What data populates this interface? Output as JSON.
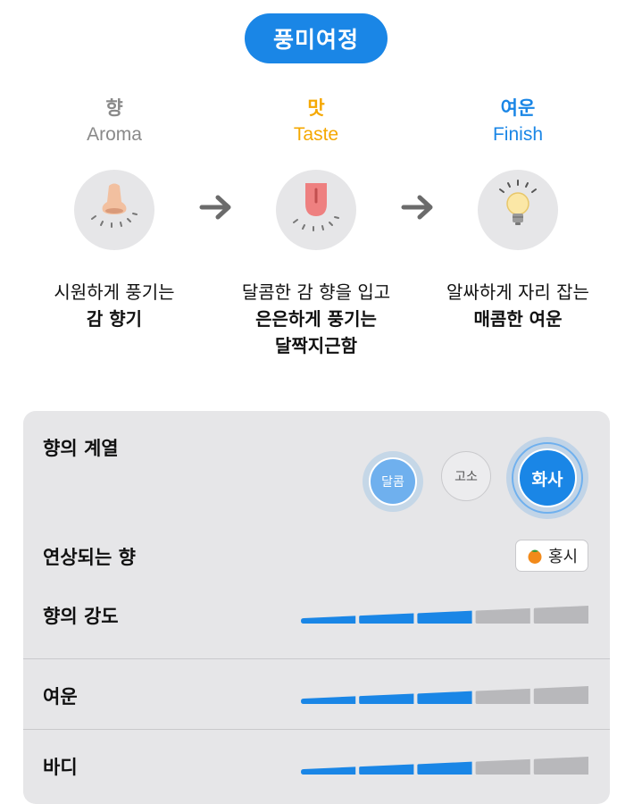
{
  "header": {
    "title": "풍미여정"
  },
  "stages": [
    {
      "ko": "향",
      "en": "Aroma",
      "icon": "nose-icon",
      "desc_line1": "시원하게 풍기는",
      "desc_bold": [
        "감 향기"
      ]
    },
    {
      "ko": "맛",
      "en": "Taste",
      "icon": "tongue-icon",
      "desc_line1": "달콤한 감 향을 입고",
      "desc_bold": [
        "은은하게 풍기는",
        "달짝지근함"
      ]
    },
    {
      "ko": "여운",
      "en": "Finish",
      "icon": "lightbulb-icon",
      "desc_line1": "알싸하게 자리 잡는",
      "desc_bold": [
        "매콤한 여운"
      ]
    }
  ],
  "colors": {
    "accent": "#1a86e6",
    "aroma": "#8a8a8a",
    "taste": "#f5a800",
    "finish": "#1a86e6",
    "bar_on": "#1a86e6",
    "bar_off": "#b8b8bb"
  },
  "profile": {
    "family": {
      "label": "향의 계열",
      "options": [
        "달콤",
        "고소",
        "화사"
      ],
      "selected": "화사",
      "secondary": "달콤"
    },
    "associated": {
      "label": "연상되는 향",
      "tag_icon": "persimmon-icon",
      "tag": "홍시"
    },
    "intensity": {
      "label": "향의 강도",
      "level": 3,
      "max": 5
    },
    "finish": {
      "label": "여운",
      "level": 3,
      "max": 5
    },
    "body": {
      "label": "바디",
      "level": 3,
      "max": 5
    }
  }
}
